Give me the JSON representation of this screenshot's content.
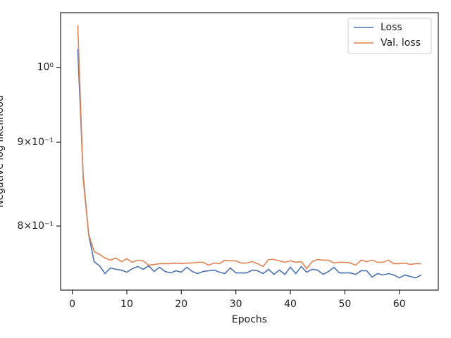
{
  "chart_data": {
    "type": "line",
    "xlabel": "Epochs",
    "ylabel": "Negative log likelihood",
    "x": [
      1,
      2,
      3,
      4,
      5,
      6,
      7,
      8,
      9,
      10,
      11,
      12,
      13,
      14,
      15,
      16,
      17,
      18,
      19,
      20,
      21,
      22,
      23,
      24,
      25,
      26,
      27,
      28,
      29,
      30,
      31,
      32,
      33,
      34,
      35,
      36,
      37,
      38,
      39,
      40,
      41,
      42,
      43,
      44,
      45,
      46,
      47,
      48,
      49,
      50,
      51,
      52,
      53,
      54,
      55,
      56,
      57,
      58,
      59,
      60,
      61,
      62,
      63,
      64
    ],
    "series": [
      {
        "name": "Loss",
        "color": "#4c72b0",
        "values": [
          1.0261,
          0.8583,
          0.7905,
          0.7609,
          0.7564,
          0.7482,
          0.7542,
          0.7527,
          0.7519,
          0.7497,
          0.7534,
          0.7557,
          0.7527,
          0.7564,
          0.7504,
          0.7549,
          0.7504,
          0.7489,
          0.7512,
          0.7497,
          0.7549,
          0.7504,
          0.7482,
          0.7504,
          0.7512,
          0.7519,
          0.7497,
          0.7482,
          0.7542,
          0.7489,
          0.7489,
          0.7489,
          0.7519,
          0.7512,
          0.7482,
          0.7527,
          0.7474,
          0.7519,
          0.7474,
          0.7549,
          0.7482,
          0.7557,
          0.7497,
          0.7527,
          0.7519,
          0.7474,
          0.7504,
          0.7549,
          0.7489,
          0.7489,
          0.7489,
          0.7474,
          0.7512,
          0.7512,
          0.7445,
          0.7482,
          0.7467,
          0.7482,
          0.7467,
          0.7437,
          0.7467,
          0.7452,
          0.7437,
          0.7467
        ]
      },
      {
        "name": "Val. loss",
        "color": "#dd8452",
        "values": [
          1.0613,
          0.8541,
          0.7912,
          0.7717,
          0.7687,
          0.7647,
          0.7625,
          0.7647,
          0.7609,
          0.764,
          0.7602,
          0.7625,
          0.7617,
          0.7572,
          0.7579,
          0.7587,
          0.7587,
          0.7587,
          0.7594,
          0.7587,
          0.7594,
          0.7594,
          0.7602,
          0.7602,
          0.7572,
          0.7594,
          0.7587,
          0.7625,
          0.7617,
          0.7617,
          0.7594,
          0.7594,
          0.7609,
          0.7587,
          0.7557,
          0.7632,
          0.7632,
          0.7617,
          0.7602,
          0.7617,
          0.7602,
          0.7609,
          0.7534,
          0.7609,
          0.7632,
          0.7625,
          0.7625,
          0.7594,
          0.7602,
          0.7602,
          0.7594,
          0.7572,
          0.7625,
          0.7609,
          0.7625,
          0.7602,
          0.7602,
          0.7625,
          0.7587,
          0.7587,
          0.7594,
          0.7579,
          0.7587,
          0.7587
        ]
      }
    ],
    "xlim": [
      -2.15,
      67.15
    ],
    "xticks": [
      0,
      10,
      20,
      30,
      40,
      50,
      60
    ],
    "ylim": [
      0.731,
      1.08
    ],
    "log_y": true,
    "yticks": [
      {
        "value": 1,
        "label": "10⁰"
      },
      {
        "value": 0.9,
        "label": "9×10⁻¹"
      },
      {
        "value": 0.8,
        "label": "8×10⁻¹"
      }
    ],
    "legend": "upper right"
  }
}
